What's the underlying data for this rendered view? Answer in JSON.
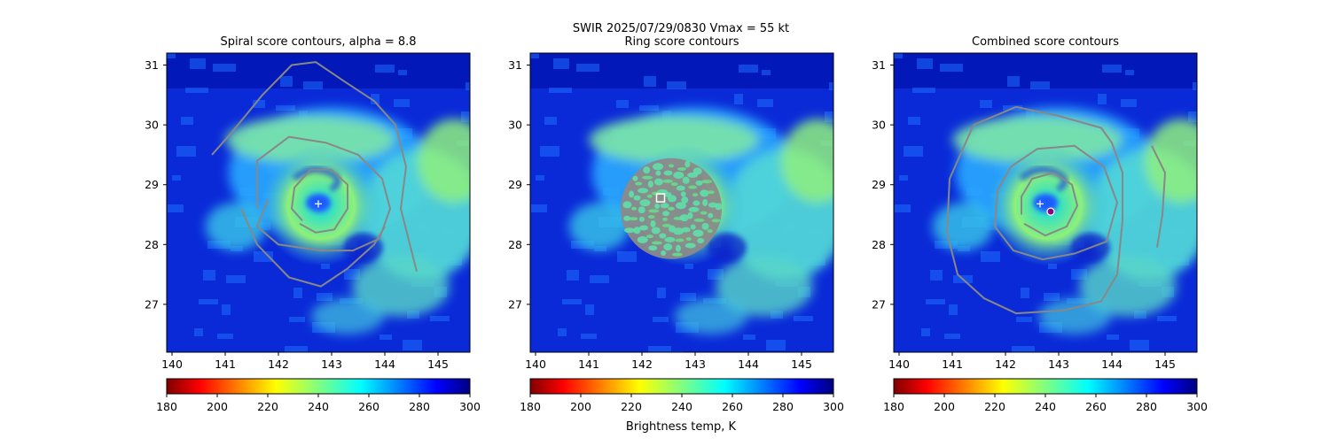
{
  "figure": {
    "suptitle_line1": "SWIR  2025/07/29/0830    Vmax = 55 kt",
    "colorbar_label": "Brightness temp, K"
  },
  "chart_data": [
    {
      "type": "heatmap",
      "title": "Spiral score contours, alpha =  8.8",
      "x_ticks": [
        140,
        141,
        142,
        143,
        144,
        145
      ],
      "y_ticks": [
        27,
        28,
        29,
        30,
        31
      ],
      "xlim": [
        139.9,
        145.6
      ],
      "ylim": [
        26.2,
        31.2
      ],
      "center_marker": {
        "symbol": "+",
        "lon": 142.75,
        "lat": 28.68
      },
      "contours": [
        {
          "color": "#888888",
          "level": "inner",
          "points": [
            [
              142.4,
              28.35
            ],
            [
              142.7,
              28.2
            ],
            [
              143.05,
              28.25
            ],
            [
              143.3,
              28.6
            ],
            [
              143.3,
              29.0
            ],
            [
              143.0,
              29.25
            ],
            [
              142.6,
              29.25
            ],
            [
              142.3,
              28.95
            ],
            [
              142.25,
              28.6
            ],
            [
              142.45,
              28.4
            ]
          ]
        },
        {
          "color": "#888888",
          "level": "middle",
          "points": [
            [
              141.6,
              28.6
            ],
            [
              141.6,
              29.4
            ],
            [
              142.2,
              29.8
            ],
            [
              142.9,
              29.7
            ],
            [
              143.5,
              29.5
            ],
            [
              143.95,
              29.1
            ],
            [
              144.1,
              28.6
            ],
            [
              143.9,
              28.1
            ],
            [
              143.4,
              27.9
            ],
            [
              142.8,
              27.9
            ],
            [
              142.0,
              28.0
            ],
            [
              141.6,
              28.3
            ],
            [
              141.8,
              28.75
            ]
          ]
        },
        {
          "color": "#888888",
          "level": "outer",
          "points": [
            [
              140.75,
              29.5
            ],
            [
              141.1,
              29.85
            ],
            [
              141.7,
              30.5
            ],
            [
              142.25,
              31.0
            ],
            [
              142.7,
              31.05
            ],
            [
              143.2,
              30.75
            ],
            [
              143.8,
              30.4
            ],
            [
              144.2,
              30.0
            ],
            [
              144.4,
              29.3
            ],
            [
              144.3,
              28.6
            ],
            [
              144.6,
              27.55
            ]
          ]
        },
        {
          "color": "#888888",
          "level": "outer-lower",
          "points": [
            [
              141.3,
              28.6
            ],
            [
              141.6,
              28.0
            ],
            [
              142.2,
              27.45
            ],
            [
              142.8,
              27.3
            ],
            [
              143.3,
              27.6
            ],
            [
              143.8,
              28.0
            ],
            [
              144.0,
              28.3
            ]
          ]
        }
      ]
    },
    {
      "type": "heatmap",
      "title": "Ring score contours",
      "x_ticks": [
        140,
        141,
        142,
        143,
        144,
        145
      ],
      "y_ticks": [
        27,
        28,
        29,
        30,
        31
      ],
      "xlim": [
        139.9,
        145.6
      ],
      "ylim": [
        26.2,
        31.2
      ],
      "center_marker": {
        "symbol": "square",
        "lon": 142.35,
        "lat": 28.78
      },
      "ring_region": {
        "lon": 142.55,
        "lat": 28.6,
        "radius_deg": 0.95
      }
    },
    {
      "type": "heatmap",
      "title": "Combined score contours",
      "x_ticks": [
        140,
        141,
        142,
        143,
        144,
        145
      ],
      "y_ticks": [
        27,
        28,
        29,
        30,
        31
      ],
      "xlim": [
        139.9,
        145.6
      ],
      "ylim": [
        26.2,
        31.2
      ],
      "center_marker": {
        "symbol": "+",
        "lon": 142.65,
        "lat": 28.68
      },
      "best_center": {
        "symbol": "circle",
        "lon": 142.85,
        "lat": 28.55,
        "color": "#8b008b"
      },
      "contours": [
        {
          "color": "#888888",
          "level": "inner",
          "points": [
            [
              142.35,
              28.35
            ],
            [
              142.75,
              28.15
            ],
            [
              143.15,
              28.3
            ],
            [
              143.35,
              28.65
            ],
            [
              143.25,
              29.0
            ],
            [
              142.9,
              29.2
            ],
            [
              142.5,
              29.1
            ],
            [
              142.3,
              28.8
            ],
            [
              142.3,
              28.5
            ]
          ]
        },
        {
          "color": "#888888",
          "level": "middle",
          "points": [
            [
              142.1,
              29.3
            ],
            [
              142.6,
              29.6
            ],
            [
              143.3,
              29.65
            ],
            [
              143.85,
              29.3
            ],
            [
              144.1,
              28.7
            ],
            [
              143.9,
              28.05
            ],
            [
              143.3,
              27.85
            ],
            [
              142.7,
              27.75
            ],
            [
              142.15,
              27.9
            ],
            [
              141.8,
              28.3
            ],
            [
              141.85,
              28.9
            ],
            [
              142.1,
              29.3
            ]
          ]
        },
        {
          "color": "#888888",
          "level": "outer",
          "points": [
            [
              141.4,
              30.0
            ],
            [
              142.2,
              30.3
            ],
            [
              143.0,
              30.15
            ],
            [
              143.8,
              29.95
            ],
            [
              144.0,
              29.7
            ],
            [
              144.2,
              29.2
            ],
            [
              144.2,
              28.4
            ],
            [
              144.1,
              27.5
            ],
            [
              143.8,
              27.05
            ],
            [
              143.1,
              26.9
            ],
            [
              142.2,
              26.85
            ],
            [
              141.6,
              27.1
            ],
            [
              141.1,
              27.5
            ],
            [
              140.9,
              28.2
            ],
            [
              140.95,
              29.1
            ],
            [
              141.4,
              30.0
            ]
          ]
        },
        {
          "color": "#888888",
          "level": "right-arc",
          "points": [
            [
              144.75,
              29.65
            ],
            [
              145.0,
              29.2
            ],
            [
              144.95,
              28.5
            ],
            [
              144.85,
              27.95
            ]
          ]
        }
      ]
    }
  ],
  "colorbar": {
    "cmap": "jet_r",
    "vmin": 180,
    "vmax": 300,
    "ticks": [
      180,
      200,
      220,
      240,
      260,
      280,
      300
    ]
  }
}
